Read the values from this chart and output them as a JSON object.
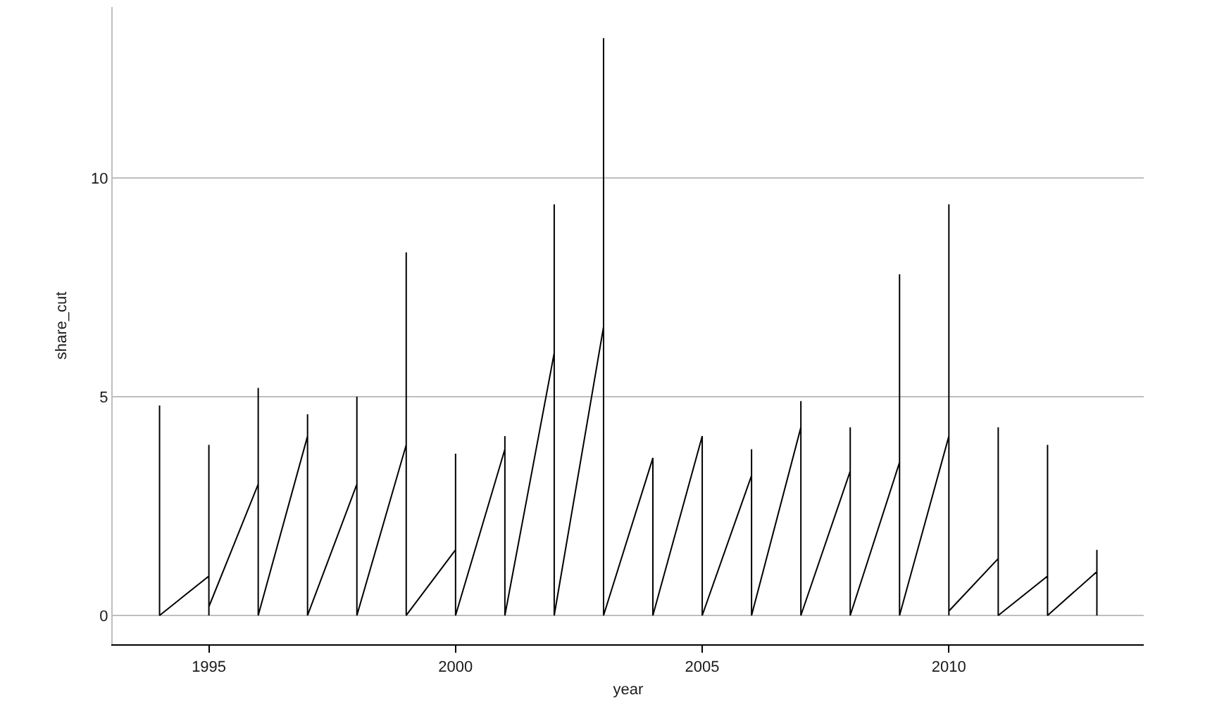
{
  "chart_data": {
    "type": "line",
    "xlabel": "year",
    "ylabel": "share_cut",
    "x": [
      1994,
      1994,
      1995,
      1995,
      1995,
      1995,
      1996,
      1996,
      1996,
      1997,
      1997,
      1997,
      1998,
      1998,
      1998,
      1999,
      1999,
      1999,
      2000,
      2000,
      2000,
      2001,
      2001,
      2001,
      2002,
      2002,
      2002,
      2003,
      2003,
      2003,
      2004,
      2004,
      2005,
      2005,
      2006,
      2006,
      2006,
      2007,
      2007,
      2007,
      2008,
      2008,
      2008,
      2009,
      2009,
      2009,
      2010,
      2010,
      2010,
      2010,
      2011,
      2011,
      2011,
      2012,
      2012,
      2012,
      2013,
      2013,
      2013
    ],
    "series": [
      {
        "color": "#000000",
        "values": [
          4.8,
          0,
          0.9,
          3.9,
          0,
          0.2,
          3.0,
          5.2,
          0,
          4.1,
          4.6,
          0,
          3.0,
          5.0,
          0,
          3.9,
          8.3,
          0,
          1.5,
          3.7,
          0,
          3.8,
          4.1,
          0,
          6.0,
          9.4,
          0,
          6.6,
          13.2,
          0,
          3.6,
          0,
          4.1,
          0,
          3.2,
          3.8,
          0,
          4.3,
          4.9,
          0,
          3.3,
          4.3,
          0,
          3.5,
          7.8,
          0,
          4.1,
          9.4,
          0,
          0.1,
          1.3,
          4.3,
          0,
          0.9,
          3.9,
          0,
          1.0,
          1.5,
          0
        ]
      }
    ],
    "xlim": [
      1993.05,
      2013.95
    ],
    "xticks": [
      1995,
      2000,
      2005,
      2010
    ],
    "ylim": [
      -0.66,
      13.91
    ],
    "yticks": [
      0,
      5,
      10
    ],
    "grid": "y",
    "marker": "none",
    "line_style": "solid"
  }
}
